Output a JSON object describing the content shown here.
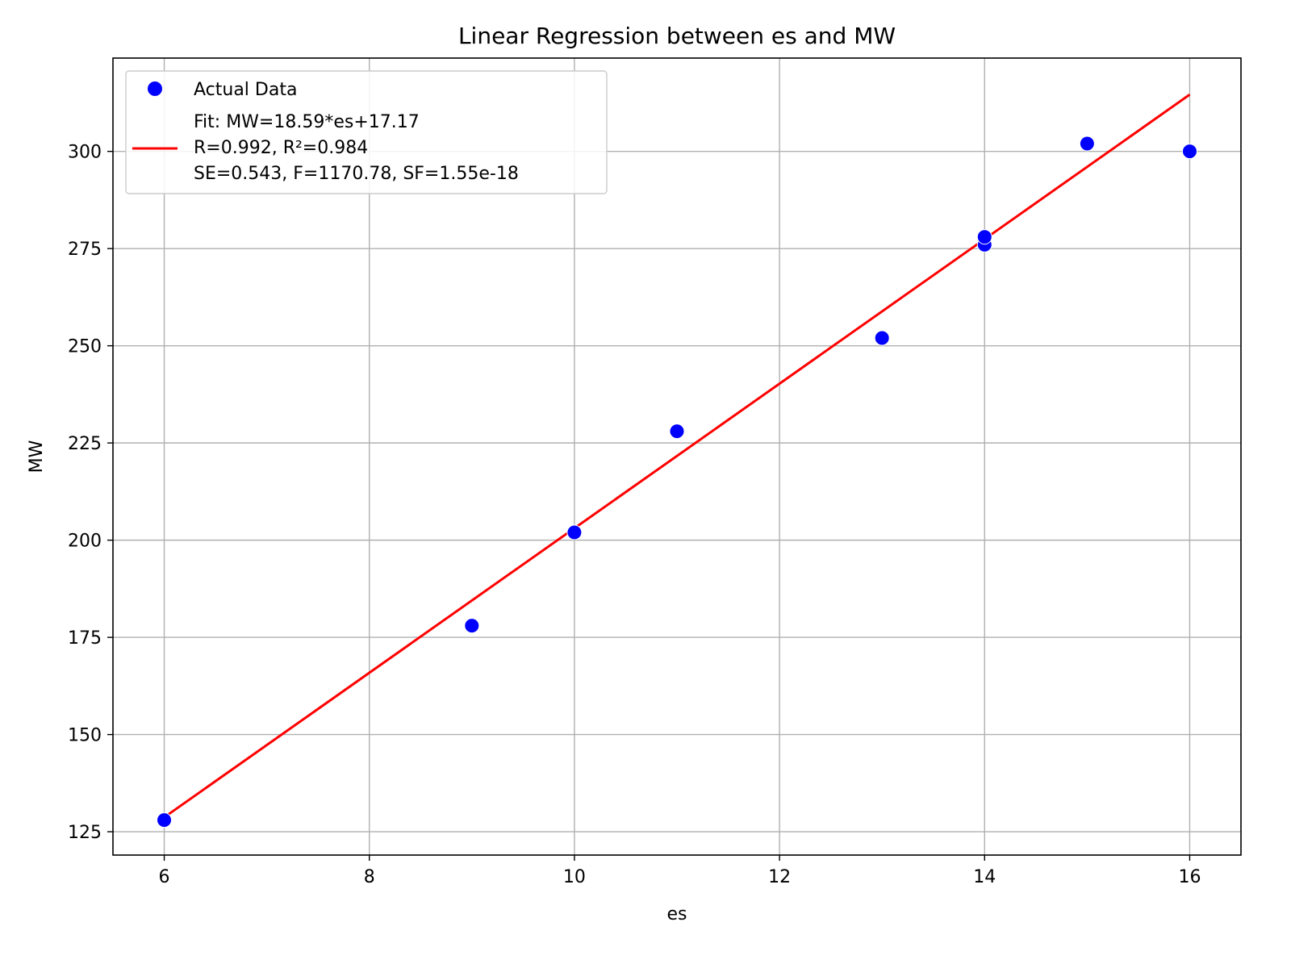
{
  "chart_data": {
    "type": "scatter",
    "title": "Linear Regression between es and MW",
    "xlabel": "es",
    "ylabel": "MW",
    "xlim": [
      5.5,
      16.5
    ],
    "ylim": [
      119,
      324
    ],
    "xticks": [
      6,
      8,
      10,
      12,
      14,
      16
    ],
    "yticks": [
      125,
      150,
      175,
      200,
      225,
      250,
      275,
      300
    ],
    "grid": true,
    "legend_position": "top-left",
    "series": [
      {
        "name": "Actual Data",
        "kind": "scatter",
        "color": "#0000ff",
        "points": [
          {
            "x": 6,
            "y": 128
          },
          {
            "x": 9,
            "y": 178
          },
          {
            "x": 10,
            "y": 202
          },
          {
            "x": 11,
            "y": 228
          },
          {
            "x": 13,
            "y": 252
          },
          {
            "x": 14,
            "y": 276
          },
          {
            "x": 14,
            "y": 278
          },
          {
            "x": 15,
            "y": 302
          },
          {
            "x": 16,
            "y": 300
          }
        ]
      },
      {
        "name": "Fit: MW=18.59*es+17.17",
        "name_lines": [
          "Fit: MW=18.59*es+17.17",
          "R=0.992, R²=0.984",
          "SE=0.543, F=1170.78, SF=1.55e-18"
        ],
        "kind": "line",
        "color": "#ff0000",
        "slope": 18.59,
        "intercept": 17.17,
        "x_range": [
          6,
          16
        ]
      }
    ]
  }
}
